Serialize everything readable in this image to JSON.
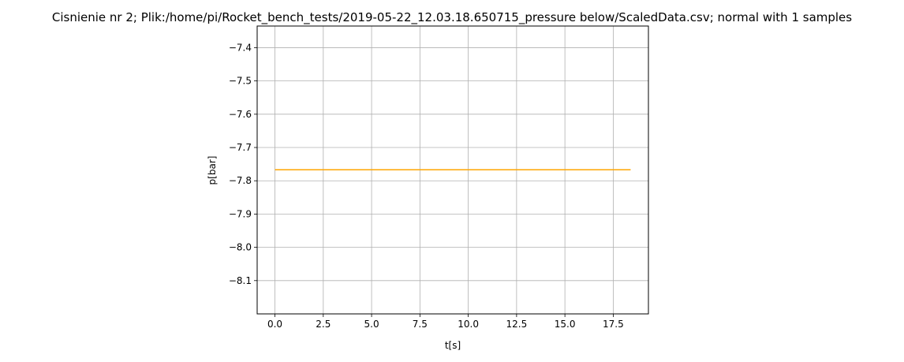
{
  "chart_data": {
    "type": "line",
    "title": "Cisnienie nr 2; Plik:/home/pi/Rocket_bench_tests/2019-05-22_12.03.18.650715_pressure below/ScaledData.csv; normal with 1 samples",
    "xlabel": "t[s]",
    "ylabel": "p[bar]",
    "xlim": [
      -0.92,
      19.32
    ],
    "ylim": [
      -8.2,
      -7.335
    ],
    "x_ticks": [
      0.0,
      2.5,
      5.0,
      7.5,
      10.0,
      12.5,
      15.0,
      17.5
    ],
    "x_tick_labels": [
      "0.0",
      "2.5",
      "5.0",
      "7.5",
      "10.0",
      "12.5",
      "15.0",
      "17.5"
    ],
    "y_ticks": [
      -7.4,
      -7.5,
      -7.6,
      -7.7,
      -7.8,
      -7.9,
      -8.0,
      -8.1
    ],
    "y_tick_labels": [
      "−7.4",
      "−7.5",
      "−7.6",
      "−7.7",
      "−7.8",
      "−7.9",
      "−8.0",
      "−8.1"
    ],
    "grid": true,
    "series": [
      {
        "color": "#ffa500",
        "x": [
          0.0,
          18.4
        ],
        "y": [
          -7.767,
          -7.767
        ]
      }
    ]
  }
}
